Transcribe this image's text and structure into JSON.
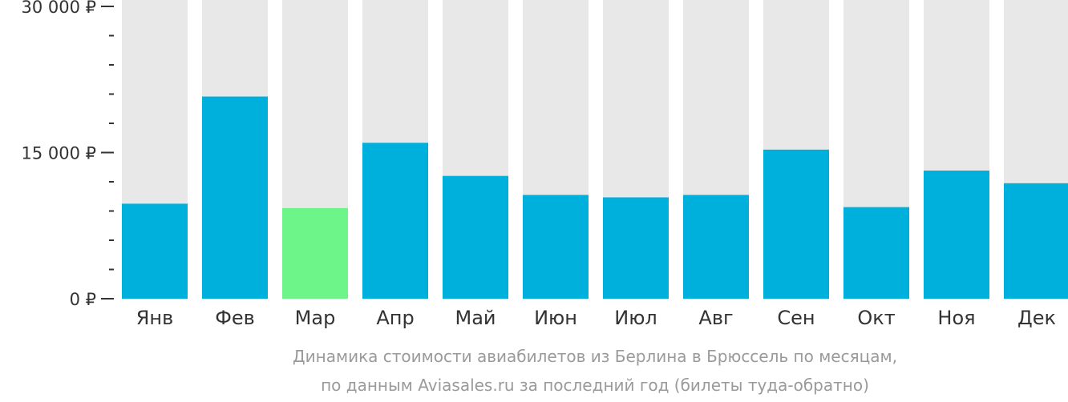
{
  "chart_data": {
    "type": "bar",
    "categories": [
      "Янв",
      "Фев",
      "Мар",
      "Апр",
      "Май",
      "Июн",
      "Июл",
      "Авг",
      "Сен",
      "Окт",
      "Ноя",
      "Дек"
    ],
    "values": [
      9750,
      20750,
      9300,
      16000,
      12600,
      10650,
      10400,
      10650,
      15300,
      9400,
      13150,
      11850
    ],
    "highlight_index": 2,
    "ylim": [
      0,
      30000
    ],
    "yticks": [
      {
        "value": 0,
        "label": "0 ₽"
      },
      {
        "value": 15000,
        "label": "15 000 ₽"
      },
      {
        "value": 30000,
        "label": "30 000 ₽"
      }
    ],
    "minor_tick_step": 3000,
    "title": "",
    "xlabel": "",
    "ylabel": "",
    "grid": false,
    "legend": "none",
    "colors": {
      "bar": "#00b0dc",
      "highlight": "#6ef58a",
      "background_bar": "#e8e8e8",
      "axis": "#333333",
      "caption": "#9a9a9a"
    }
  },
  "caption": {
    "line1": "Динамика стоимости авиабилетов из Берлина в Брюссель по месяцам,",
    "line2": "по данным Aviasales.ru за последний год (билеты туда-обратно)"
  }
}
